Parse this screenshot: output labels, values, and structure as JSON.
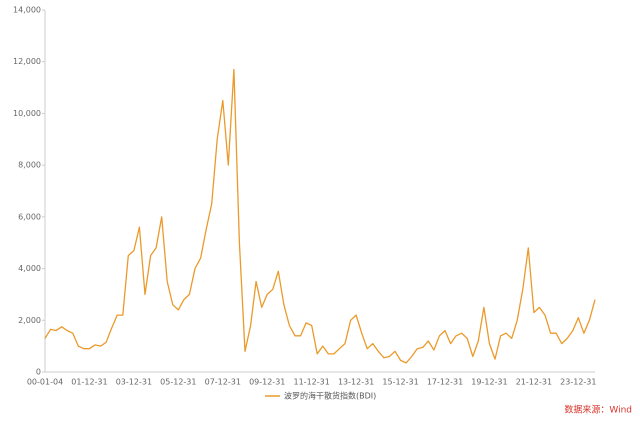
{
  "chart_data": {
    "type": "line",
    "categories": [
      "00-01-04",
      null,
      null,
      null,
      null,
      null,
      null,
      null,
      "01-12-31",
      null,
      null,
      null,
      null,
      null,
      null,
      null,
      "03-12-31",
      null,
      null,
      null,
      null,
      null,
      null,
      null,
      "05-12-31",
      null,
      null,
      null,
      null,
      null,
      null,
      null,
      "07-12-31",
      null,
      null,
      null,
      null,
      null,
      null,
      null,
      "09-12-31",
      null,
      null,
      null,
      null,
      null,
      null,
      null,
      "11-12-31",
      null,
      null,
      null,
      null,
      null,
      null,
      null,
      "13-12-31",
      null,
      null,
      null,
      null,
      null,
      null,
      null,
      "15-12-31",
      null,
      null,
      null,
      null,
      null,
      null,
      null,
      "17-12-31",
      null,
      null,
      null,
      null,
      null,
      null,
      null,
      "19-12-31",
      null,
      null,
      null,
      null,
      null,
      null,
      null,
      "21-12-31",
      null,
      null,
      null,
      null,
      null,
      null,
      null,
      "23-12-31",
      null,
      null,
      null
    ],
    "series": [
      {
        "name": "波罗的海干散货指数(BDI)",
        "color": "#eb9a2a",
        "values": [
          1300,
          1650,
          1600,
          1750,
          1600,
          1500,
          1000,
          900,
          900,
          1050,
          1000,
          1150,
          1700,
          2200,
          2200,
          4500,
          4700,
          5600,
          3000,
          4500,
          4800,
          6000,
          3500,
          2600,
          2400,
          2800,
          3000,
          4000,
          4400,
          5500,
          6500,
          9000,
          10500,
          8000,
          11700,
          5000,
          800,
          1800,
          3500,
          2500,
          3000,
          3200,
          3900,
          2600,
          1800,
          1400,
          1400,
          1900,
          1800,
          700,
          1000,
          700,
          700,
          900,
          1100,
          2000,
          2200,
          1500,
          900,
          1100,
          800,
          550,
          600,
          800,
          450,
          350,
          600,
          900,
          950,
          1200,
          850,
          1400,
          1600,
          1100,
          1400,
          1500,
          1300,
          600,
          1200,
          2500,
          1100,
          500,
          1400,
          1500,
          1300,
          2000,
          3200,
          4800,
          2300,
          2500,
          2200,
          1500,
          1500,
          1100,
          1300,
          1600,
          2100,
          1500,
          2000,
          2800
        ]
      }
    ],
    "ylim": [
      0,
      14000
    ],
    "yticks": [
      0,
      {
        "value": 2000,
        "label": "2,000"
      },
      {
        "value": 4000,
        "label": "4,000"
      },
      {
        "value": 6000,
        "label": "6,000"
      },
      {
        "value": 8000,
        "label": "8,000"
      },
      {
        "value": 10000,
        "label": "10,000"
      },
      {
        "value": 12000,
        "label": "12,000"
      },
      {
        "value": 14000,
        "label": "14,000"
      }
    ],
    "source": "数据来源：Wind"
  }
}
